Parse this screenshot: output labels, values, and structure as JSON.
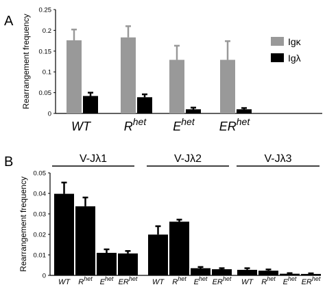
{
  "chart_data": [
    {
      "type": "bar",
      "panel_label": "A",
      "ylabel": "Rearrangement frequency",
      "ylim": [
        0,
        0.25
      ],
      "yticks": [
        "0",
        "0.05",
        "0.1",
        "0.15",
        "0.2",
        "0.25"
      ],
      "categories": [
        {
          "base": "WT",
          "sup": ""
        },
        {
          "base": "R",
          "sup": "het"
        },
        {
          "base": "E",
          "sup": "het"
        },
        {
          "base": "ER",
          "sup": "het"
        }
      ],
      "series": [
        {
          "name": "Igκ",
          "color": "#999999",
          "values": [
            0.176,
            0.183,
            0.129,
            0.129
          ],
          "errors": [
            0.026,
            0.027,
            0.034,
            0.045
          ]
        },
        {
          "name": "Igλ",
          "color": "#000000",
          "values": [
            0.042,
            0.039,
            0.01,
            0.01
          ],
          "errors": [
            0.008,
            0.007,
            0.004,
            0.003
          ]
        }
      ],
      "legend": "right"
    },
    {
      "type": "bar",
      "panel_label": "B",
      "ylabel": "Rearrangement frequency",
      "ylim": [
        0,
        0.05
      ],
      "yticks": [
        "0",
        "0.01",
        "0.02",
        "0.03",
        "0.04",
        "0.05"
      ],
      "groups": [
        "V-Jλ1",
        "V-Jλ2",
        "V-Jλ3"
      ],
      "categories": [
        {
          "base": "WT",
          "sup": ""
        },
        {
          "base": "R",
          "sup": "het"
        },
        {
          "base": "E",
          "sup": "het"
        },
        {
          "base": "ER",
          "sup": "het"
        }
      ],
      "series": [
        {
          "group": "V-Jλ1",
          "color": "#000000",
          "values": [
            0.0398,
            0.0337,
            0.011,
            0.0107
          ],
          "errors": [
            0.0055,
            0.0043,
            0.0017,
            0.0012
          ]
        },
        {
          "group": "V-Jλ2",
          "color": "#000000",
          "values": [
            0.0199,
            0.0262,
            0.0035,
            0.003
          ],
          "errors": [
            0.0041,
            0.001,
            0.0006,
            0.0005
          ]
        },
        {
          "group": "V-Jλ3",
          "color": "#000000",
          "values": [
            0.0027,
            0.0023,
            0.0008,
            0.0007
          ],
          "errors": [
            0.0008,
            0.0006,
            0.0003,
            0.0003
          ]
        }
      ]
    }
  ]
}
